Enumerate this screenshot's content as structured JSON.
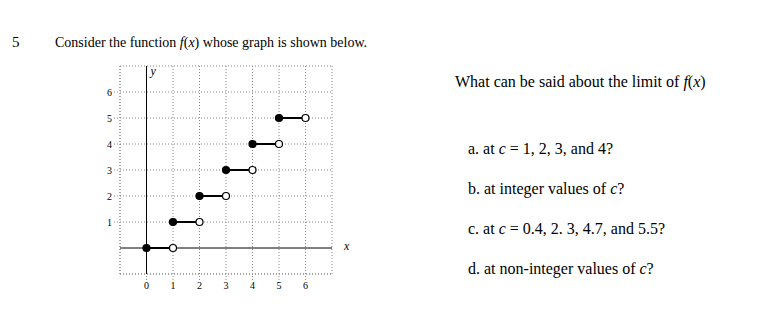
{
  "number": "5",
  "statement": "Consider the function f(x) whose graph is shown below.",
  "question": "What can be said about the limit of f(x)",
  "parts": [
    {
      "label": "a.",
      "text": "at c = 1, 2, 3, and 4?"
    },
    {
      "label": "b.",
      "text": "at integer values of c?"
    },
    {
      "label": "c.",
      "text": "at c = 0.4, 2. 3, 4.7, and 5.5?"
    },
    {
      "label": "d.",
      "text": "at non-integer values of c?"
    }
  ],
  "chart_data": {
    "type": "step",
    "x_label": "x",
    "y_label": "y",
    "xlim": [
      -1,
      7
    ],
    "ylim": [
      -1,
      7
    ],
    "xticks": [
      0,
      1,
      2,
      3,
      4,
      5,
      6
    ],
    "yticks": [
      1,
      2,
      3,
      4,
      5,
      6
    ],
    "grid": true,
    "color": "#000000",
    "marker": "closed_open",
    "segments": [
      {
        "x": [
          0,
          1
        ],
        "values": [
          0,
          0
        ]
      },
      {
        "x": [
          1,
          2
        ],
        "values": [
          1,
          1
        ]
      },
      {
        "x": [
          2,
          3
        ],
        "values": [
          2,
          2
        ]
      },
      {
        "x": [
          3,
          4
        ],
        "values": [
          3,
          3
        ]
      },
      {
        "x": [
          4,
          5
        ],
        "values": [
          4,
          4
        ]
      },
      {
        "x": [
          5,
          6
        ],
        "values": [
          5,
          5
        ]
      }
    ]
  }
}
